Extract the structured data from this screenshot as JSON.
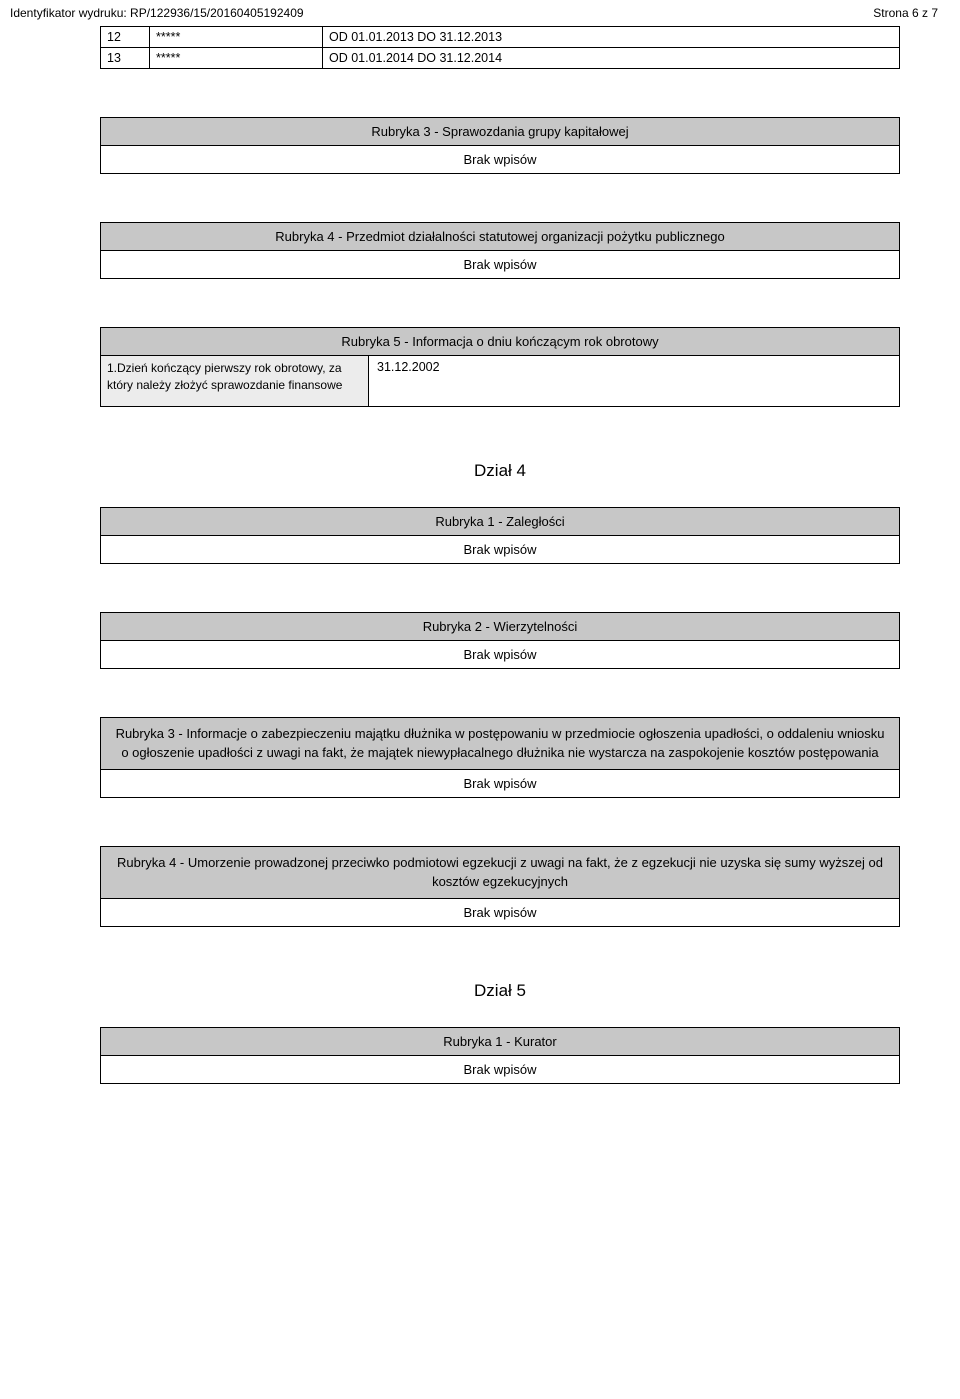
{
  "colors": {
    "header_bg": "#c7c7c7",
    "label_bg": "#ececec",
    "border": "#000000",
    "text": "#000000",
    "page_bg": "#ffffff"
  },
  "typography": {
    "base_font": "Arial",
    "base_size_pt": 10,
    "header_size_pt": 10,
    "dzial_size_pt": 13
  },
  "topbar": {
    "left": "Identyfikator wydruku: RP/122936/15/20160405192409",
    "right": "Strona 6 z 7"
  },
  "top_table": {
    "rows": [
      {
        "num": "12",
        "stars": "*****",
        "text": "OD 01.01.2013 DO 31.12.2013"
      },
      {
        "num": "13",
        "stars": "*****",
        "text": "OD 01.01.2014 DO 31.12.2014"
      }
    ]
  },
  "rub3a": {
    "title": "Rubryka 3 - Sprawozdania grupy kapitałowej",
    "body": "Brak wpisów"
  },
  "rub4a": {
    "title": "Rubryka 4 - Przedmiot działalności statutowej organizacji pożytku publicznego",
    "body": "Brak wpisów"
  },
  "rub5": {
    "title": "Rubryka 5 - Informacja o dniu kończącym rok obrotowy",
    "label": "1.Dzień kończący pierwszy rok obrotowy, za który należy złożyć sprawozdanie finansowe",
    "value": "31.12.2002"
  },
  "dzial4": "Dział 4",
  "rub1b": {
    "title": "Rubryka 1 - Zaległości",
    "body": "Brak wpisów"
  },
  "rub2b": {
    "title": "Rubryka 2 - Wierzytelności",
    "body": "Brak wpisów"
  },
  "rub3b": {
    "title": "Rubryka 3 - Informacje o zabezpieczeniu majątku dłużnika w postępowaniu w przedmiocie ogłoszenia upadłości, o oddaleniu wniosku o ogłoszenie upadłości z uwagi na fakt, że majątek niewypłacalnego dłużnika nie wystarcza na zaspokojenie kosztów postępowania",
    "body": "Brak wpisów"
  },
  "rub4b": {
    "title": "Rubryka 4 - Umorzenie prowadzonej przeciwko podmiotowi egzekucji z uwagi na fakt, że z egzekucji nie uzyska się sumy wyższej od kosztów egzekucyjnych",
    "body": "Brak wpisów"
  },
  "dzial5": "Dział 5",
  "rub1c": {
    "title": "Rubryka 1 - Kurator",
    "body": "Brak wpisów"
  }
}
